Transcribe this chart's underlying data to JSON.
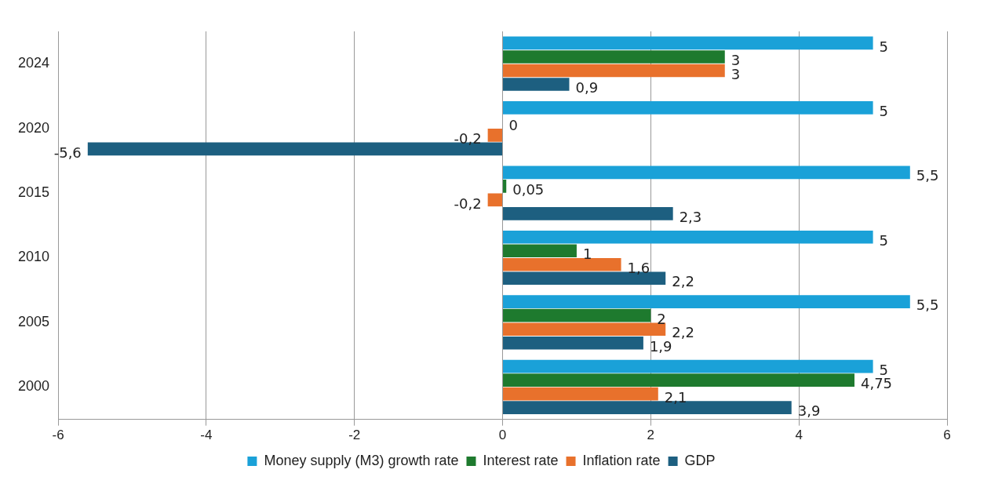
{
  "chart_data": {
    "type": "bar",
    "orientation": "horizontal",
    "categories": [
      "2024",
      "2020",
      "2015",
      "2010",
      "2005",
      "2000"
    ],
    "series": [
      {
        "name": "Money supply (M3) growth rate",
        "color": "#1aa1d8",
        "values": [
          5,
          5,
          5.5,
          5,
          5.5,
          5
        ],
        "value_labels": [
          "5",
          "5",
          "5,5",
          "5",
          "5,5",
          "5"
        ]
      },
      {
        "name": "Interest rate",
        "color": "#1e7a2e",
        "values": [
          3,
          0,
          0.05,
          1,
          2,
          4.75
        ],
        "value_labels": [
          "3",
          "0",
          "0,05",
          "1",
          "2",
          "4,75"
        ]
      },
      {
        "name": "Inflation rate",
        "color": "#e8712c",
        "values": [
          3,
          -0.2,
          -0.2,
          1.6,
          2.2,
          2.1
        ],
        "value_labels": [
          "3",
          "-0,2",
          "-0,2",
          "1,6",
          "2,2",
          "2,1"
        ]
      },
      {
        "name": "GDP",
        "color": "#1d5f80",
        "values": [
          0.9,
          -5.6,
          2.3,
          2.2,
          1.9,
          3.9
        ],
        "value_labels": [
          "0,9",
          "-5,6",
          "2,3",
          "2,2",
          "1,9",
          "3,9"
        ]
      }
    ],
    "xlim": [
      -6,
      6
    ],
    "xticks": [
      -6,
      -4,
      -2,
      0,
      2,
      4,
      6
    ],
    "grid": "x",
    "legend": "bottom"
  }
}
